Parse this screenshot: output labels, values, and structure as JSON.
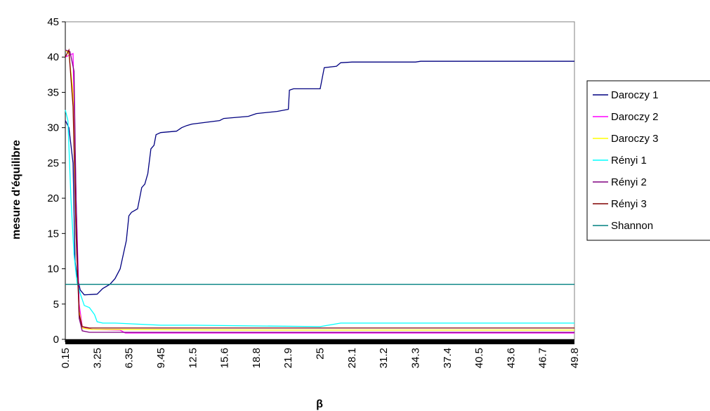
{
  "chart_data": {
    "type": "line",
    "title": "",
    "xlabel": "β",
    "ylabel": "mesure d'équilibre",
    "ylim": [
      0,
      45
    ],
    "yticks": [
      "0",
      "5",
      "10",
      "15",
      "20",
      "25",
      "30",
      "35",
      "40",
      "45"
    ],
    "xlim": [
      0.15,
      49.8
    ],
    "xticks": [
      "0.15",
      "3.25",
      "6.35",
      "9.45",
      "12.5",
      "15.6",
      "18.8",
      "21.9",
      "25",
      "28.1",
      "31.2",
      "34.3",
      "37.4",
      "40.5",
      "43.6",
      "46.7",
      "49.8"
    ],
    "grid": false,
    "legend_position": "right",
    "series": [
      {
        "name": "Daroczy 1",
        "color": "#000080",
        "x": [
          0.15,
          0.5,
          0.9,
          1.1,
          1.3,
          1.6,
          2.0,
          3.25,
          3.8,
          4.5,
          5.0,
          5.5,
          5.8,
          6.1,
          6.35,
          6.6,
          7.2,
          7.6,
          7.9,
          8.2,
          8.5,
          8.8,
          9.0,
          9.45,
          11.0,
          11.5,
          12.0,
          12.5,
          15.2,
          15.6,
          18.0,
          18.8,
          20.8,
          21.9,
          22.0,
          22.4,
          22.5,
          25.0,
          25.4,
          26.6,
          27.0,
          28.1,
          34.3,
          34.8,
          49.8
        ],
        "y": [
          31,
          30,
          25,
          11,
          9,
          7,
          6.3,
          6.4,
          7.2,
          7.8,
          8.6,
          10,
          12,
          14,
          17.5,
          18,
          18.5,
          21.5,
          22,
          23.5,
          27,
          27.5,
          29,
          29.3,
          29.5,
          30,
          30.3,
          30.5,
          31,
          31.3,
          31.6,
          32,
          32.3,
          32.6,
          35.3,
          35.5,
          35.5,
          35.5,
          38.5,
          38.7,
          39.2,
          39.3,
          39.3,
          39.4,
          39.4
        ]
      },
      {
        "name": "Daroczy 2",
        "color": "#ff00ff",
        "x": [
          0.15,
          0.9,
          1.2,
          1.5,
          1.8,
          2.2,
          2.8,
          5.5,
          6.0,
          49.8
        ],
        "y": [
          40,
          40.5,
          20,
          5,
          1.8,
          1.6,
          1.4,
          1.3,
          0.9,
          0.9
        ]
      },
      {
        "name": "Daroczy 3",
        "color": "#ffff00",
        "x": [
          0.15,
          0.5,
          0.9,
          1.2,
          1.5,
          1.8,
          2.2,
          2.8,
          18.8,
          22.0,
          49.8
        ],
        "y": [
          41,
          40.5,
          35,
          15,
          4,
          1.6,
          1.5,
          1.4,
          1.3,
          1.3,
          1.3
        ]
      },
      {
        "name": "Rényi 1",
        "color": "#00ffff",
        "x": [
          0.15,
          0.4,
          0.7,
          1.0,
          1.3,
          1.6,
          2.0,
          2.5,
          3.0,
          3.25,
          3.8,
          5.0,
          9.45,
          12.5,
          25.0,
          27.0,
          49.8
        ],
        "y": [
          32.5,
          31,
          20,
          12,
          8,
          6.5,
          4.8,
          4.5,
          3.5,
          2.5,
          2.3,
          2.3,
          2.0,
          2.0,
          1.8,
          2.3,
          2.3
        ]
      },
      {
        "name": "Rényi 2",
        "color": "#800080",
        "x": [
          0.15,
          0.6,
          1.0,
          1.2,
          1.5,
          1.8,
          2.5,
          5.0,
          49.8
        ],
        "y": [
          41,
          40.8,
          38,
          20,
          3,
          1.2,
          1.0,
          1.0,
          1.0
        ]
      },
      {
        "name": "Rényi 3",
        "color": "#800000",
        "x": [
          0.15,
          0.5,
          0.9,
          1.2,
          1.5,
          1.8,
          2.5,
          5.0,
          49.8
        ],
        "y": [
          40,
          41,
          33,
          15,
          3.5,
          1.8,
          1.6,
          1.6,
          1.6
        ]
      },
      {
        "name": "Shannon",
        "color": "#008080",
        "x": [
          0.15,
          49.8
        ],
        "y": [
          7.8,
          7.8
        ]
      }
    ]
  }
}
